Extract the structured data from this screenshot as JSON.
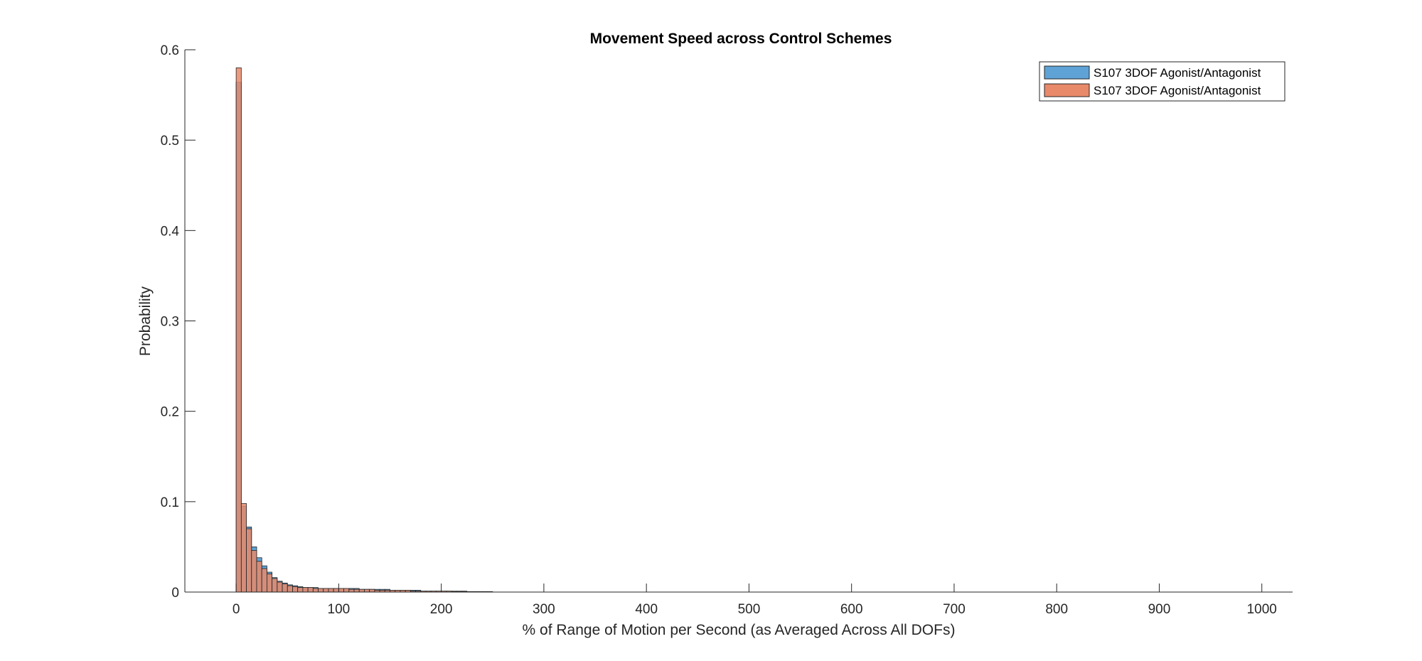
{
  "chart_data": {
    "type": "bar",
    "title": "Movement Speed across Control Schemes",
    "xlabel": "% of Range of Motion per Second (as Averaged Across All DOFs)",
    "ylabel": "Probability",
    "xlim": [
      -50,
      1030
    ],
    "ylim": [
      0,
      0.6
    ],
    "xticks": [
      0,
      100,
      200,
      300,
      400,
      500,
      600,
      700,
      800,
      900,
      1000
    ],
    "yticks": [
      0,
      0.1,
      0.2,
      0.3,
      0.4,
      0.5,
      0.6
    ],
    "xtick_labels": [
      "0",
      "100",
      "200",
      "300",
      "400",
      "500",
      "600",
      "700",
      "800",
      "900",
      "1000"
    ],
    "ytick_labels": [
      "0",
      "0.1",
      "0.2",
      "0.3",
      "0.4",
      "0.5",
      "0.6"
    ],
    "grid": false,
    "legend_position": "top-right",
    "bin_width": 5,
    "x": [
      0,
      5,
      10,
      15,
      20,
      25,
      30,
      35,
      40,
      45,
      50,
      55,
      60,
      65,
      70,
      75,
      80,
      85,
      90,
      95,
      100,
      105,
      110,
      115,
      120,
      125,
      130,
      135,
      140,
      145,
      150,
      155,
      160,
      165,
      170,
      175,
      180,
      185,
      190,
      195,
      200,
      205,
      210,
      215,
      220,
      225,
      230,
      235,
      240,
      245
    ],
    "series": [
      {
        "name": "S107 3DOF Agonist/Antagonist",
        "color": "#5fa3d6",
        "values": [
          0.564,
          0.095,
          0.072,
          0.05,
          0.038,
          0.029,
          0.022,
          0.016,
          0.012,
          0.01,
          0.008,
          0.007,
          0.006,
          0.005,
          0.005,
          0.005,
          0.004,
          0.004,
          0.004,
          0.004,
          0.004,
          0.004,
          0.004,
          0.004,
          0.003,
          0.003,
          0.003,
          0.003,
          0.003,
          0.003,
          0.002,
          0.002,
          0.002,
          0.002,
          0.002,
          0.002,
          0.001,
          0.001,
          0.001,
          0.001,
          0.001,
          0.001,
          0.001,
          0.001,
          0.001,
          0.0005,
          0.0005,
          0.0005,
          0.0005,
          0.0005
        ]
      },
      {
        "name": "S107 3DOF Agonist/Antagonist",
        "color": "#e8896a",
        "values": [
          0.58,
          0.098,
          0.07,
          0.046,
          0.034,
          0.026,
          0.02,
          0.015,
          0.011,
          0.009,
          0.007,
          0.006,
          0.005,
          0.005,
          0.005,
          0.004,
          0.004,
          0.004,
          0.004,
          0.004,
          0.004,
          0.004,
          0.003,
          0.003,
          0.003,
          0.003,
          0.003,
          0.002,
          0.002,
          0.002,
          0.002,
          0.002,
          0.002,
          0.002,
          0.001,
          0.001,
          0.001,
          0.001,
          0.001,
          0.001,
          0.001,
          0.001,
          0.0005,
          0.0005,
          0.0005,
          0.0005,
          0.0005,
          0.0005,
          0.0005,
          0.0005
        ]
      }
    ]
  }
}
